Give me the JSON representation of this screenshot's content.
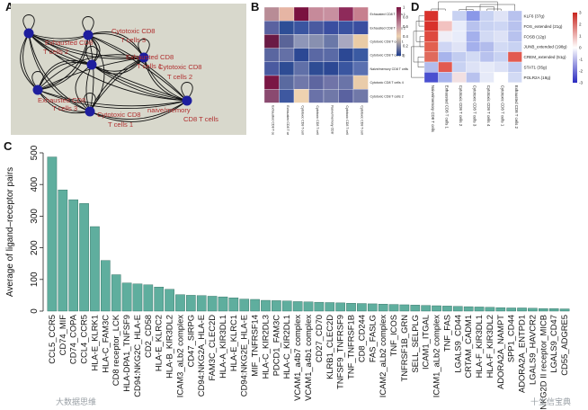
{
  "figure": {
    "panel_labels": [
      "A",
      "B",
      "C",
      "D"
    ],
    "watermark_left": "大数据思维",
    "watermark_right": "十生信宝典"
  },
  "panel_a": {
    "nodes": [
      {
        "label": "Exhausted CD8 T cells 2"
      },
      {
        "label": "Cytotoxic CD8 T cells 3"
      },
      {
        "label": "Cytotoxic CD8 T cells 2"
      },
      {
        "label": "Exhausted CD8 T cells 3"
      },
      {
        "label": "Cytotoxic CD8 T cells 1"
      },
      {
        "label": "naive/memory CD8 T cells"
      },
      {
        "label": "Exhausted CD8 T cells 1"
      }
    ],
    "colors": {
      "node": "#1e1e9e",
      "label": "#b03030",
      "background": "#d8d8cc"
    }
  },
  "panel_b": {
    "row_labels": [
      "Exhausted CD8 T cells 1",
      "Exhausted CD8 T cells 2",
      "Cytotoxic CD8 T cells 1",
      "Cytotoxic CD8 T cells 3",
      "Naive/memory CD8 T cells",
      "Cytotoxic CD8 T cells 4",
      "Cytotoxic CD8 T cells 2"
    ],
    "col_labels": [
      "Exhausted CD8 T cells 1",
      "Exhausted CD8 T cells 2",
      "Cytotoxic CD8 T cells 1",
      "Cytotoxic CD8 T cells 3",
      "Naive/memory CD8 T cells",
      "Cytotoxic CD8 T cells 4",
      "Cytotoxic CD8 T cells 2"
    ],
    "matrix": [
      [
        "#b88c96",
        "#e6b5a4",
        "#7a1240",
        "#c68a9a",
        "#c890a0",
        "#8e2a5a",
        "#c7808f"
      ],
      [
        "#5a62a0",
        "#2e4e96",
        "#3a55a0",
        "#4a5aa0",
        "#3a4ea0",
        "#3a52a0",
        "#3a4ea0"
      ],
      [
        "#6a1a44",
        "#5a6498",
        "#8e96b8",
        "#8890b0",
        "#6a78a8",
        "#a8a8c0",
        "#eacca6"
      ],
      [
        "#5a66a0",
        "#6470a6",
        "#2c4894",
        "#5a68a4",
        "#5a6aa6",
        "#2c4894",
        "#3a5aa2"
      ],
      [
        "#4a5aa0",
        "#2e4c94",
        "#6070a8",
        "#2e4c94",
        "#2c4894",
        "#3a56a0",
        "#5a70b0"
      ],
      [
        "#7a1644",
        "#5a6aa0",
        "#7078aa",
        "#5e66a0",
        "#7074a8",
        "#6a74a8",
        "#eaccaa"
      ],
      [
        "#8a4a70",
        "#3e58a0",
        "#eed2b0",
        "#6a72a8",
        "#7078a8",
        "#5a62a0",
        "#7078a8"
      ]
    ],
    "legend_ticks": [
      "1",
      "0.8",
      "0.6",
      "0.4",
      "0.2",
      "0"
    ]
  },
  "panel_c": {
    "chart_data": {
      "type": "bar",
      "ylabel": "Average of ligand–receptor pairs",
      "xlabel": "",
      "ylim": [
        0,
        500
      ],
      "yticks": [
        0,
        100,
        200,
        300,
        400,
        500
      ],
      "categories": [
        "CCL5_CCR5",
        "CD74_MIF",
        "CD74_COPA",
        "CCL4_CCR5",
        "HLA-E_KLRK1",
        "HLA-C_FAM3C",
        "CD8 receptor_LCK",
        "HLA-DPA1_TNFSF9",
        "CD94:NKG2C_HLA-E",
        "CD2_CD58",
        "HLA-E_KLRC2",
        "HLA-B_KIR3DL2",
        "ICAM3_aLb2 complex",
        "CD47_SIRPG",
        "CD94:NKG2A_HLA-E",
        "FAM3C_CLEC2D",
        "HLA-A_KIR3DL1",
        "HLA-E_KLRC1",
        "CD94:NKG2E_HLA-E",
        "MIF_TNFRSF14",
        "HLA-C_KIR2DL3",
        "PDCD1_FAM3C",
        "HLA-C_KIR2DL1",
        "VCAM1_a4b7 complex",
        "VCAM1_a4b1 complex",
        "CD27_CD70",
        "KLRB1_CLEC2D",
        "TNFSF9_TNFRSF9",
        "TNF_TNFRSF1B",
        "CD8_CD244",
        "FAS_FASLG",
        "ICAM2_aLb2 complex",
        "TNF_ICOS",
        "TNFRSF1B_GRN",
        "SELL_SELPLG",
        "ICAM1_ITGAL",
        "ICAM1_aLb2 complex",
        "TNF_FAS",
        "LGALS9_CD44",
        "CRTAM_CADM1",
        "HLA-F_KIR3DL1",
        "HLA-F_KIR3DL2",
        "ADORA2A_NAMPT",
        "SPP1_CD44",
        "ADORA2A_ENTPD1",
        "LGALS9_HAVCR2",
        "NKG2D II receptor_MICB",
        "LGALS9_CD47",
        "CD55_ADGRE5"
      ],
      "values": [
        487,
        383,
        352,
        340,
        267,
        160,
        115,
        89,
        86,
        83,
        76,
        69,
        52,
        50,
        49,
        47,
        45,
        42,
        38,
        37,
        34,
        33,
        32,
        30,
        29,
        28,
        27,
        26,
        25,
        24,
        23,
        22,
        21,
        20,
        19,
        18,
        17,
        16,
        15,
        14,
        13,
        12,
        11,
        10,
        10,
        9,
        8,
        8,
        7
      ],
      "bar_color": "#5fae9e"
    }
  },
  "panel_d": {
    "row_labels": [
      "KLF6 (37g)",
      "FOS_extended (21g)",
      "FOSB (12g)",
      "JUNB_extended (198g)",
      "CREM_extended (51g)",
      "STAT1 (35g)",
      "POLR2A (18g)"
    ],
    "col_labels": [
      "Naive/memory CD8 T cells",
      "Exhausted CD8 T cells 1",
      "Cytotoxic CD8 T cells 2",
      "Cytotoxic CD8 T cells 3",
      "Cytotoxic CD8 T cells 4",
      "Cytotoxic CD8 T cells 1",
      "Exhausted CD8 T cells 2"
    ],
    "matrix": [
      [
        "#d8322c",
        "#ffffff",
        "#c8d2f2",
        "#8a98e8",
        "#c8d2f2",
        "#dfe3f6",
        "#b8c2ee"
      ],
      [
        "#d8322c",
        "#f2c2c0",
        "#e8ecfa",
        "#b8c2ee",
        "#c8d2f2",
        "#cdd6f4",
        "#b8c2ee"
      ],
      [
        "#de4a40",
        "#f0eef6",
        "#e8ecfa",
        "#a4b0ec",
        "#d2daf4",
        "#dde2f6",
        "#b8c2ee"
      ],
      [
        "#e26050",
        "#cfd6f4",
        "#dfe3f6",
        "#a4b0ec",
        "#b2bcec",
        "#d2daf4",
        "#c8d2f2"
      ],
      [
        "#e06a5c",
        "#a8b4ec",
        "#c2ccf0",
        "#d2daf4",
        "#b8c2ee",
        "#c8d2f2",
        "#e25a50"
      ],
      [
        "#b2bcec",
        "#e25a50",
        "#c8d2f2",
        "#dde2f6",
        "#e6eaf8",
        "#dde2f6",
        "#c2ccf0"
      ],
      [
        "#4a50d0",
        "#a8b4ec",
        "#f2e0e2",
        "#b8c2ee",
        "#e6eaf8",
        "#ffffff",
        "#d2daf4"
      ]
    ],
    "legend_ticks": [
      "3",
      "2",
      "1",
      "0",
      "-1",
      "-2",
      "-3"
    ]
  }
}
